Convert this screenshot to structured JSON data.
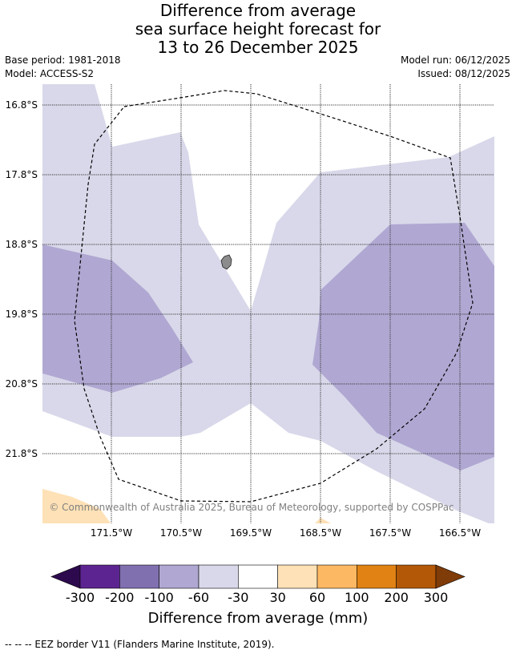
{
  "title": {
    "line1": "Difference from average",
    "line2": "sea surface height forecast for",
    "line3": "13 to 26 December 2025"
  },
  "meta": {
    "base_period": "Base period: 1981-2018",
    "model": "Model: ACCESS-S2",
    "model_run": "Model run: 06/12/2025",
    "issued": "Issued: 08/12/2025"
  },
  "map": {
    "lat_labels": [
      "16.8°S",
      "17.8°S",
      "18.8°S",
      "19.8°S",
      "20.8°S",
      "21.8°S"
    ],
    "lon_labels": [
      "171.5°W",
      "170.5°W",
      "169.5°W",
      "168.5°W",
      "167.5°W",
      "166.5°W"
    ],
    "copyright": "© Commonwealth of Australia 2025, Bureau of Meteorology, supported by COSPPac"
  },
  "colorbar": {
    "tick_labels": [
      "-300",
      "-200",
      "-100",
      "-60",
      "-30",
      "30",
      "60",
      "100",
      "200",
      "300"
    ],
    "colors": [
      "#2d0a4e",
      "#5c2490",
      "#8170b0",
      "#b0a8d2",
      "#d8d8ea",
      "#ffffff",
      "#fee1b6",
      "#fdb863",
      "#e08214",
      "#b35806",
      "#7f3b08"
    ],
    "title": "Difference from average (mm)"
  },
  "footer": {
    "eez_note": "--  --  -- EEZ border V11 (Flanders Marine Institute, 2019)."
  }
}
